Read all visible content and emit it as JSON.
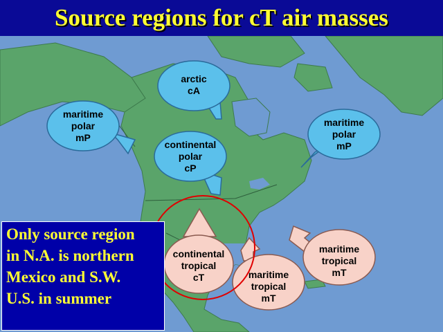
{
  "title": "Source regions for cT air masses",
  "bubbles": {
    "arctic": {
      "line1": "arctic",
      "line2": "cA",
      "color": "#5bc0eb"
    },
    "maritime_polar_west": {
      "line1": "maritime",
      "line2": "polar",
      "line3": "mP",
      "color": "#5bc0eb"
    },
    "continental_polar": {
      "line1": "continental",
      "line2": "polar",
      "line3": "cP",
      "color": "#5bc0eb"
    },
    "maritime_polar_east": {
      "line1": "maritime",
      "line2": "polar",
      "line3": "mP",
      "color": "#5bc0eb"
    },
    "continental_tropical": {
      "line1": "continental",
      "line2": "tropical",
      "line3": "cT",
      "color": "#f8d2c8"
    },
    "maritime_tropical_gulf": {
      "line1": "maritime",
      "line2": "tropical",
      "line3": "mT",
      "color": "#f8d2c8"
    },
    "maritime_tropical_atlantic": {
      "line1": "maritime",
      "line2": "tropical",
      "line3": "mT",
      "color": "#f8d2c8"
    }
  },
  "note": {
    "lines": [
      "Only source region",
      "in N.A. is northern",
      "Mexico and S.W.",
      "U.S. in summer"
    ]
  },
  "colors": {
    "ocean": "#6f9bd2",
    "land": "#5aa46a",
    "title_text": "#ffff33",
    "highlight_circle": "#e00000"
  }
}
